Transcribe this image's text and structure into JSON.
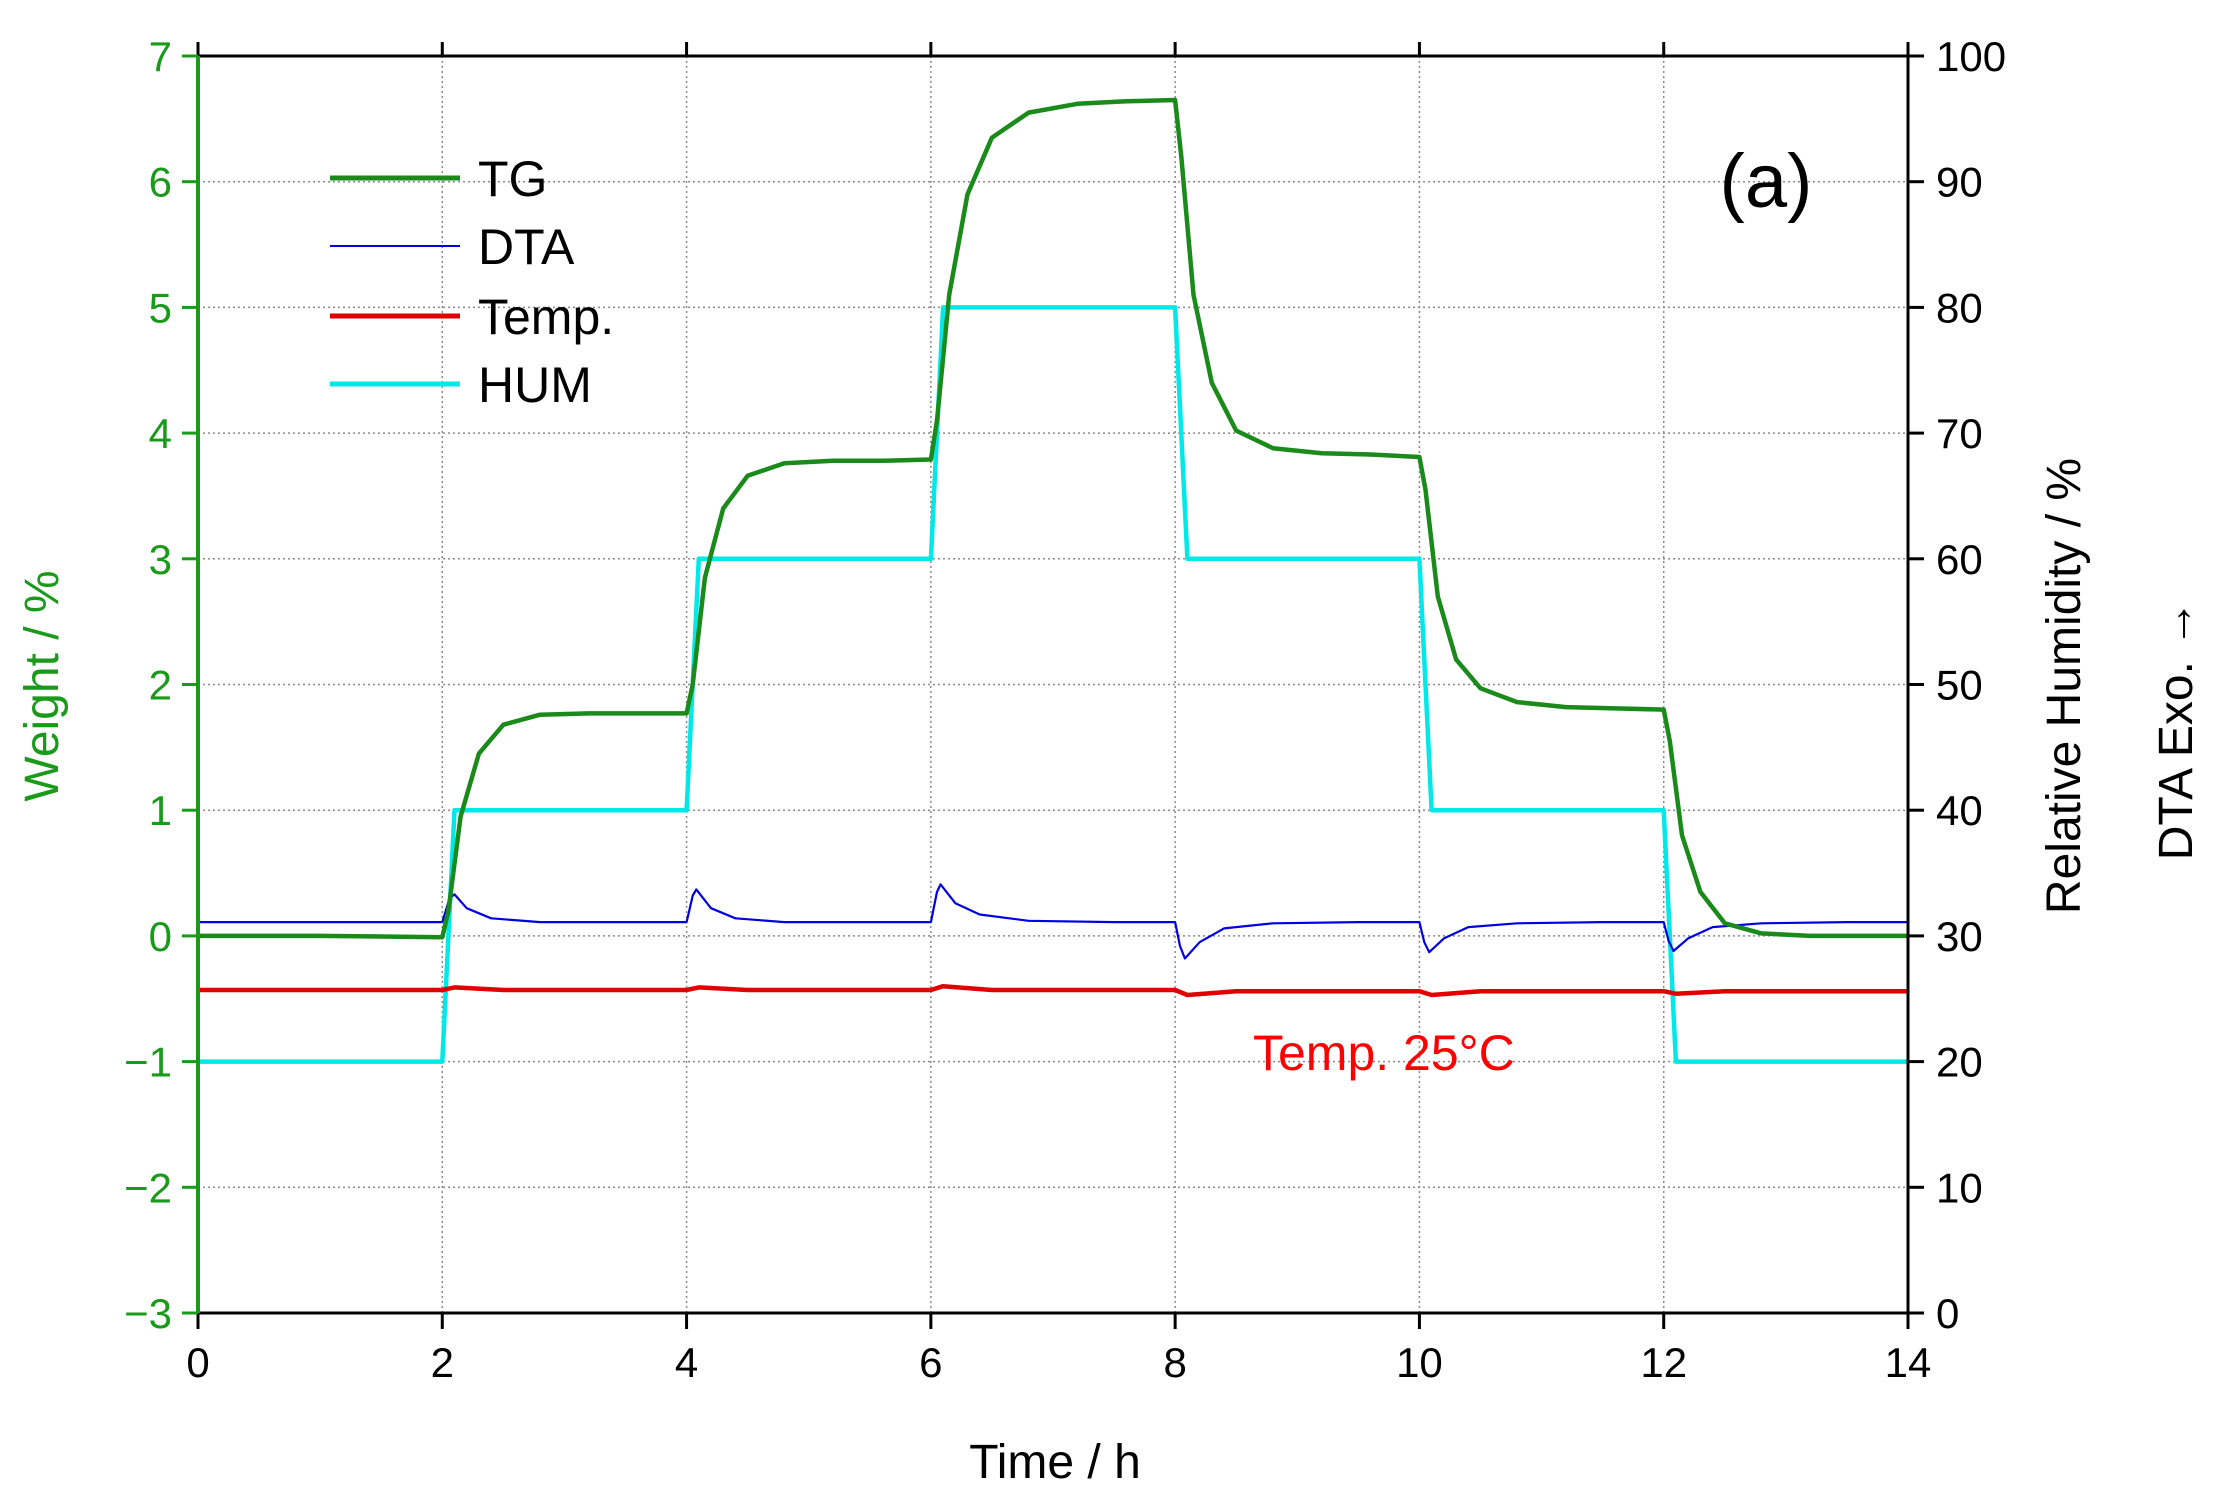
{
  "chart_data": {
    "type": "line",
    "panel_label": "(a)",
    "xlabel": "Time / h",
    "ylabel_left": "Weight / %",
    "ylabel_right": "Relative Humidity / %",
    "ylabel_dta": "DTA Exo. →",
    "annotation": "Temp. 25°C",
    "xlim": [
      0,
      14
    ],
    "ylim_left": [
      -3,
      7
    ],
    "ylim_right": [
      0,
      100
    ],
    "x_ticks": [
      "0",
      "2",
      "4",
      "6",
      "8",
      "10",
      "12",
      "14"
    ],
    "y_left_ticks": [
      "−3",
      "−2",
      "−1",
      "0",
      "1",
      "2",
      "3",
      "4",
      "5",
      "6",
      "7"
    ],
    "y_right_ticks": [
      "0",
      "10",
      "20",
      "30",
      "40",
      "50",
      "60",
      "70",
      "80",
      "90",
      "100"
    ],
    "grid": true,
    "legend_position": "top-left",
    "colors": {
      "left_axis": "#1a9a1a",
      "annotation": "#ff0000"
    },
    "series": [
      {
        "name": "TG",
        "axis": "left",
        "color": "#1a8a1a",
        "x": [
          0,
          1.0,
          2.0,
          2.05,
          2.15,
          2.3,
          2.5,
          2.8,
          3.2,
          3.6,
          4.0,
          4.05,
          4.15,
          4.3,
          4.5,
          4.8,
          5.2,
          5.6,
          6.0,
          6.05,
          6.15,
          6.3,
          6.5,
          6.8,
          7.2,
          7.6,
          8.0,
          8.05,
          8.15,
          8.3,
          8.5,
          8.8,
          9.2,
          9.6,
          10.0,
          10.05,
          10.15,
          10.3,
          10.5,
          10.8,
          11.2,
          11.6,
          12.0,
          12.05,
          12.15,
          12.3,
          12.5,
          12.8,
          13.2,
          13.6,
          14.0
        ],
        "values": [
          0,
          0,
          -0.01,
          0.2,
          0.95,
          1.45,
          1.68,
          1.76,
          1.77,
          1.77,
          1.77,
          2.0,
          2.85,
          3.4,
          3.66,
          3.76,
          3.78,
          3.78,
          3.79,
          4.1,
          5.1,
          5.9,
          6.35,
          6.55,
          6.62,
          6.64,
          6.65,
          6.2,
          5.1,
          4.4,
          4.02,
          3.88,
          3.84,
          3.83,
          3.81,
          3.55,
          2.7,
          2.2,
          1.97,
          1.86,
          1.82,
          1.81,
          1.8,
          1.55,
          0.8,
          0.35,
          0.1,
          0.02,
          0.0,
          0.0,
          0.0
        ]
      },
      {
        "name": "DTA",
        "axis": "left",
        "color": "#0000e0",
        "x": [
          0,
          1.0,
          2.0,
          2.06,
          2.1,
          2.2,
          2.4,
          2.8,
          3.5,
          4.0,
          4.05,
          4.08,
          4.2,
          4.4,
          4.8,
          5.5,
          6.0,
          6.05,
          6.08,
          6.2,
          6.4,
          6.8,
          7.5,
          8.0,
          8.04,
          8.08,
          8.2,
          8.4,
          8.8,
          9.5,
          10.0,
          10.04,
          10.08,
          10.2,
          10.4,
          10.8,
          11.5,
          12.0,
          12.04,
          12.08,
          12.2,
          12.4,
          12.8,
          13.5,
          14.0
        ],
        "values": [
          0.11,
          0.11,
          0.11,
          0.3,
          0.33,
          0.22,
          0.14,
          0.11,
          0.11,
          0.11,
          0.32,
          0.37,
          0.22,
          0.14,
          0.11,
          0.11,
          0.11,
          0.35,
          0.41,
          0.26,
          0.17,
          0.12,
          0.11,
          0.11,
          -0.08,
          -0.18,
          -0.05,
          0.06,
          0.1,
          0.11,
          0.11,
          -0.05,
          -0.13,
          -0.02,
          0.07,
          0.1,
          0.11,
          0.11,
          -0.04,
          -0.12,
          -0.02,
          0.07,
          0.1,
          0.11,
          0.11
        ]
      },
      {
        "name": "Temp.",
        "axis": "left",
        "color": "#e00000",
        "x": [
          0,
          2.0,
          2.1,
          2.5,
          4.0,
          4.1,
          4.5,
          6.0,
          6.1,
          6.5,
          8.0,
          8.1,
          8.5,
          10.0,
          10.1,
          10.5,
          12.0,
          12.1,
          12.5,
          14.0
        ],
        "values": [
          -0.43,
          -0.43,
          -0.41,
          -0.43,
          -0.43,
          -0.41,
          -0.43,
          -0.43,
          -0.4,
          -0.43,
          -0.43,
          -0.47,
          -0.44,
          -0.44,
          -0.47,
          -0.44,
          -0.44,
          -0.46,
          -0.44,
          -0.44
        ]
      },
      {
        "name": "HUM",
        "axis": "right",
        "color": "#00e8e8",
        "x": [
          0,
          2.0,
          2.1,
          4.0,
          4.1,
          6.0,
          6.1,
          8.0,
          8.1,
          10.0,
          10.1,
          12.0,
          12.1,
          14.0
        ],
        "values": [
          20,
          20,
          40,
          40,
          60,
          60,
          80,
          80,
          60,
          60,
          40,
          40,
          20,
          20
        ]
      }
    ]
  }
}
